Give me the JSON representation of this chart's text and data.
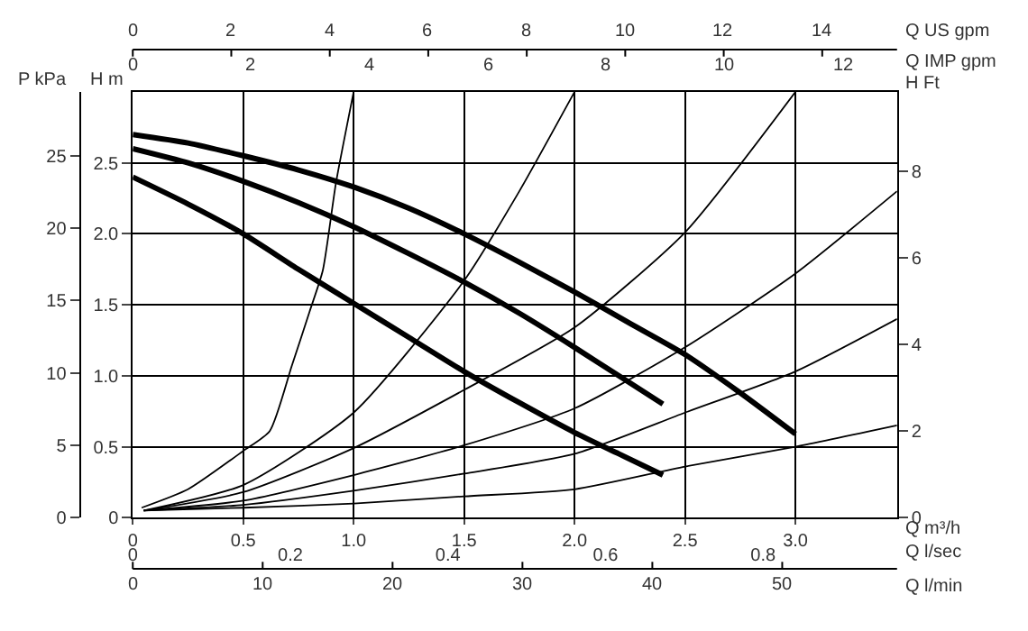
{
  "chart_data": {
    "type": "line",
    "xlabel": "Q m³/h",
    "x2label": "Q l/sec",
    "ylabel": "H m",
    "y2label": "P kPa",
    "y3label": "H Ft",
    "xlim": [
      0,
      3.46
    ],
    "xticks": [
      0,
      0.5,
      {
        "value": 1,
        "label": "1.0"
      },
      1.5,
      {
        "value": 2,
        "label": "2.0"
      },
      2.5,
      {
        "value": 3,
        "label": "3.0"
      }
    ],
    "x2lim": [
      0,
      0.97
    ],
    "x2ticks": [
      0,
      0.2,
      0.4,
      0.6,
      0.8
    ],
    "ylim": [
      0,
      3
    ],
    "yticks": [
      0,
      0.5,
      {
        "value": 1,
        "label": "1.0"
      },
      1.5,
      {
        "value": 2,
        "label": "2.0"
      },
      2.5
    ],
    "y2lim": [
      0,
      29.4
    ],
    "y2ticks": [
      0,
      5,
      10,
      15,
      20,
      25
    ],
    "y3lim": [
      0,
      9.84
    ],
    "y3ticks": [
      0,
      2,
      4,
      6,
      8
    ],
    "grid": true,
    "marker": "none",
    "line_style": "solid",
    "series": [
      {
        "color": "#000000",
        "x": [
          0,
          0.25,
          0.5,
          0.75,
          1.0,
          1.25,
          1.5,
          1.75,
          2.0,
          2.25,
          2.5,
          2.75,
          3.0
        ],
        "values": [
          2.7,
          2.64,
          2.55,
          2.45,
          2.33,
          2.18,
          2.0,
          1.8,
          1.59,
          1.37,
          1.15,
          0.88,
          0.59
        ]
      },
      {
        "color": "#000000",
        "x": [
          0,
          0.25,
          0.5,
          0.75,
          1.0,
          1.25,
          1.5,
          1.75,
          2.0,
          2.2,
          2.4
        ],
        "values": [
          2.6,
          2.5,
          2.37,
          2.22,
          2.05,
          1.86,
          1.66,
          1.44,
          1.2,
          1.0,
          0.8
        ]
      },
      {
        "color": "#000000",
        "x": [
          0,
          0.25,
          0.5,
          0.75,
          1.0,
          1.25,
          1.5,
          1.75,
          2.0,
          2.2,
          2.4
        ],
        "values": [
          2.4,
          2.21,
          2.0,
          1.75,
          1.51,
          1.27,
          1.03,
          0.81,
          0.6,
          0.45,
          0.3
        ]
      },
      {
        "color": "#000000",
        "x": [
          0.04,
          0.25,
          0.5,
          0.62,
          0.72,
          0.8,
          0.86,
          0.92,
          1.0
        ],
        "values": [
          0.07,
          0.2,
          0.47,
          0.61,
          1.07,
          1.45,
          1.74,
          2.36,
          3.0
        ]
      },
      {
        "color": "#000000",
        "x": [
          0.05,
          0.5,
          1.0,
          1.5,
          1.75,
          2.0
        ],
        "values": [
          0.05,
          0.23,
          0.74,
          1.67,
          2.3,
          3.0
        ]
      },
      {
        "color": "#000000",
        "x": [
          0.05,
          0.5,
          1.0,
          1.5,
          2.0,
          2.5,
          3.0
        ],
        "values": [
          0.05,
          0.18,
          0.49,
          0.9,
          1.34,
          2.01,
          3.0
        ]
      },
      {
        "color": "#000000",
        "x": [
          0.05,
          0.5,
          1.0,
          1.5,
          2.0,
          2.5,
          3.0,
          3.46
        ],
        "values": [
          0.05,
          0.12,
          0.3,
          0.51,
          0.77,
          1.2,
          1.72,
          2.3
        ]
      },
      {
        "color": "#000000",
        "x": [
          0.05,
          0.5,
          1.0,
          1.5,
          2.0,
          2.5,
          3.0,
          3.46
        ],
        "values": [
          0.05,
          0.09,
          0.19,
          0.31,
          0.45,
          0.74,
          1.03,
          1.4
        ]
      },
      {
        "color": "#000000",
        "x": [
          0.05,
          0.5,
          1.0,
          1.5,
          2.0,
          2.5,
          3.0,
          3.46
        ],
        "values": [
          0.05,
          0.07,
          0.1,
          0.15,
          0.2,
          0.36,
          0.5,
          0.65
        ]
      }
    ],
    "annotations": [
      "Q US gpm",
      "0",
      "2",
      "4",
      "6",
      "8",
      "10",
      "12",
      "14",
      "Q IMP gpm",
      "0",
      "2",
      "4",
      "6",
      "8",
      "10",
      "12",
      "Q l/min",
      "0",
      "10",
      "20",
      "30",
      "40",
      "50"
    ]
  }
}
